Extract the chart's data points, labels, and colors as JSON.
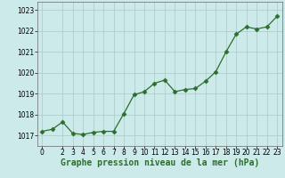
{
  "x": [
    0,
    1,
    2,
    3,
    4,
    5,
    6,
    7,
    8,
    9,
    10,
    11,
    12,
    13,
    14,
    15,
    16,
    17,
    18,
    19,
    20,
    21,
    22,
    23
  ],
  "y": [
    1017.2,
    1017.3,
    1017.65,
    1017.1,
    1017.05,
    1017.15,
    1017.2,
    1017.2,
    1018.05,
    1018.95,
    1019.1,
    1019.5,
    1019.65,
    1019.1,
    1019.2,
    1019.25,
    1019.6,
    1020.05,
    1021.0,
    1021.85,
    1022.2,
    1022.1,
    1022.2,
    1022.7
  ],
  "line_color": "#2d6e2d",
  "marker": "D",
  "marker_size": 2.5,
  "bg_color": "#cceaea",
  "grid_color": "#aac8c8",
  "xlabel": "Graphe pression niveau de la mer (hPa)",
  "xlabel_fontsize": 7,
  "tick_fontsize": 5.5,
  "yticks": [
    1017,
    1018,
    1019,
    1020,
    1021,
    1022,
    1023
  ],
  "xticks": [
    0,
    2,
    3,
    4,
    5,
    6,
    7,
    8,
    9,
    10,
    11,
    12,
    13,
    14,
    15,
    16,
    17,
    18,
    19,
    20,
    21,
    22,
    23
  ],
  "ylim": [
    1016.5,
    1023.4
  ],
  "xlim": [
    -0.5,
    23.5
  ]
}
